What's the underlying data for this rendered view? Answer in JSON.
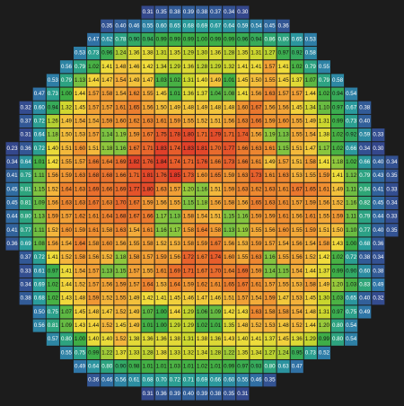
{
  "chart_data": {
    "type": "heatmap",
    "colorscale": [
      [
        0.3,
        "#34478c"
      ],
      [
        0.5,
        "#2f78a8"
      ],
      [
        0.68,
        "#2a9c9c"
      ],
      [
        0.88,
        "#2fa86c"
      ],
      [
        1.0,
        "#3fae45"
      ],
      [
        1.15,
        "#80c341"
      ],
      [
        1.3,
        "#c9d62e"
      ],
      [
        1.42,
        "#f1dc3c"
      ],
      [
        1.52,
        "#f4b53c"
      ],
      [
        1.62,
        "#ee8a30"
      ],
      [
        1.72,
        "#e8632c"
      ],
      [
        1.85,
        "#df3a28"
      ]
    ],
    "values": [
      [
        null,
        null,
        null,
        null,
        null,
        null,
        null,
        null,
        null,
        null,
        0.31,
        0.35,
        0.38,
        0.39,
        0.38,
        0.37,
        0.34,
        {
          "value": 0.3,
          "label": "0.30"
        },
        null,
        null,
        null,
        null,
        null,
        null,
        null,
        null,
        null,
        null,
        null
      ],
      [
        null,
        null,
        null,
        null,
        null,
        null,
        null,
        0.35,
        {
          "value": 0.4,
          "label": "0.40"
        },
        0.46,
        0.55,
        {
          "value": 0.6,
          "label": "0.60"
        },
        0.65,
        0.68,
        0.69,
        0.67,
        0.64,
        0.59,
        0.54,
        0.45,
        0.36,
        null,
        null,
        null,
        null,
        null,
        null,
        null,
        null
      ],
      [
        null,
        null,
        null,
        null,
        null,
        null,
        0.47,
        0.62,
        0.78,
        {
          "value": 0.9,
          "label": "0.90"
        },
        0.94,
        0.99,
        0.99,
        0.99,
        {
          "value": 1,
          "label": "1.00"
        },
        0.99,
        0.99,
        0.96,
        0.94,
        0.86,
        {
          "value": 0.8,
          "label": "0.80"
        },
        0.65,
        0.53,
        null,
        null,
        null,
        null,
        null,
        null
      ],
      [
        null,
        null,
        null,
        null,
        null,
        0.53,
        0.73,
        0.96,
        1.24,
        1.36,
        1.38,
        1.31,
        1.35,
        1.29,
        {
          "value": 1.3,
          "label": "1.30"
        },
        1.36,
        1.28,
        1.35,
        1.31,
        1.27,
        0.97,
        0.92,
        0.58,
        null,
        null,
        null,
        null,
        null,
        null
      ],
      [
        null,
        null,
        null,
        null,
        0.56,
        0.79,
        1.02,
        1.41,
        1.48,
        1.46,
        1.42,
        1.34,
        1.29,
        1.36,
        1.28,
        1.29,
        1.32,
        1.41,
        1.41,
        1.57,
        1.41,
        1.02,
        0.79,
        0.55,
        null,
        null,
        null,
        null,
        null
      ],
      [
        null,
        null,
        null,
        0.53,
        0.79,
        1.13,
        1.44,
        1.47,
        1.54,
        1.49,
        1.47,
        1.03,
        1.02,
        1.31,
        {
          "value": 1.4,
          "label": "1.40"
        },
        1.49,
        1.01,
        1.45,
        {
          "value": 1.5,
          "label": "1.50"
        },
        1.55,
        1.45,
        1.37,
        1.07,
        0.79,
        0.58,
        null,
        null,
        null,
        null
      ],
      [
        null,
        null,
        0.47,
        0.73,
        {
          "value": 1,
          "label": "1.00"
        },
        1.44,
        1.57,
        1.58,
        1.54,
        1.62,
        1.55,
        1.45,
        1.01,
        1.36,
        1.37,
        1.04,
        1.08,
        1.41,
        1.56,
        1.63,
        1.57,
        1.57,
        1.44,
        1.02,
        0.94,
        0.54,
        null,
        null,
        null
      ],
      [
        null,
        0.32,
        {
          "value": 0.6,
          "label": "0.60"
        },
        0.94,
        1.32,
        1.45,
        1.57,
        1.57,
        1.61,
        1.65,
        1.56,
        {
          "value": 1.5,
          "label": "1.50"
        },
        1.49,
        1.48,
        1.49,
        1.48,
        1.48,
        {
          "value": 1.6,
          "label": "1.60"
        },
        1.67,
        1.56,
        1.56,
        1.45,
        1.34,
        {
          "value": 1.1,
          "label": "1.10"
        },
        0.97,
        0.67,
        0.38,
        null,
        null
      ],
      [
        null,
        0.37,
        0.72,
        1.26,
        1.49,
        1.54,
        1.54,
        1.59,
        {
          "value": 1.6,
          "label": "1.60"
        },
        1.62,
        1.63,
        1.61,
        1.59,
        1.55,
        1.52,
        1.51,
        1.56,
        1.63,
        1.66,
        1.59,
        {
          "value": 1.6,
          "label": "1.60"
        },
        1.55,
        1.49,
        1.31,
        0.99,
        0.73,
        {
          "value": 0.4,
          "label": "0.40"
        },
        null,
        null
      ],
      [
        null,
        0.31,
        0.64,
        1.18,
        {
          "value": 1.5,
          "label": "1.50"
        },
        1.53,
        1.57,
        1.14,
        1.19,
        1.59,
        1.67,
        1.75,
        1.78,
        {
          "value": 1.8,
          "label": "1.80"
        },
        1.71,
        1.79,
        1.71,
        1.74,
        1.56,
        1.19,
        1.13,
        1.55,
        1.54,
        1.38,
        1.02,
        0.92,
        0.59,
        0.33,
        null
      ],
      [
        0.23,
        0.36,
        0.72,
        {
          "value": 1.4,
          "label": "1.40"
        },
        1.51,
        {
          "value": 1.6,
          "label": "1.60"
        },
        1.51,
        1.18,
        1.16,
        1.67,
        1.71,
        1.83,
        1.74,
        1.83,
        1.81,
        {
          "value": 1.7,
          "label": "1.70"
        },
        1.77,
        1.66,
        1.63,
        1.61,
        1.15,
        1.51,
        1.47,
        1.17,
        1.02,
        0.66,
        0.34,
        {
          "value": 0.3,
          "label": "0.30"
        },
        null
      ],
      [
        0.34,
        0.64,
        1.01,
        1.42,
        1.55,
        1.57,
        1.66,
        1.64,
        1.69,
        1.82,
        1.76,
        1.84,
        1.74,
        1.71,
        1.76,
        1.66,
        1.73,
        1.66,
        1.61,
        1.49,
        1.57,
        1.51,
        1.58,
        1.41,
        1.18,
        1.02,
        0.66,
        {
          "value": 0.4,
          "label": "0.40"
        },
        0.34
      ],
      [
        0.41,
        0.75,
        1.11,
        1.56,
        1.59,
        1.63,
        1.68,
        1.68,
        1.66,
        1.71,
        1.81,
        1.76,
        1.85,
        1.73,
        {
          "value": 1.6,
          "label": "1.60"
        },
        1.65,
        1.59,
        1.63,
        1.73,
        1.61,
        1.63,
        1.53,
        1.55,
        1.59,
        1.41,
        1.12,
        0.79,
        0.43,
        0.35
      ],
      [
        0.45,
        0.81,
        1.15,
        1.52,
        1.64,
        1.63,
        1.69,
        1.66,
        1.69,
        1.77,
        {
          "value": 1.8,
          "label": "1.80"
        },
        1.63,
        1.57,
        {
          "value": 1.2,
          "label": "1.20"
        },
        1.16,
        1.51,
        1.59,
        1.63,
        1.62,
        1.63,
        1.61,
        1.67,
        1.65,
        1.61,
        1.49,
        1.11,
        0.84,
        0.41,
        0.33
      ],
      [
        0.45,
        0.81,
        1.09,
        1.56,
        1.63,
        1.63,
        1.67,
        1.63,
        {
          "value": 1.7,
          "label": "1.70"
        },
        1.67,
        1.59,
        1.56,
        1.55,
        1.15,
        1.18,
        1.56,
        1.58,
        1.56,
        1.65,
        1.63,
        1.61,
        1.57,
        1.59,
        1.56,
        1.52,
        1.16,
        0.82,
        0.45,
        0.34
      ],
      [
        0.44,
        {
          "value": 0.8,
          "label": "0.80"
        },
        1.13,
        1.59,
        1.57,
        1.62,
        1.61,
        1.64,
        1.68,
        1.67,
        1.66,
        1.17,
        1.13,
        1.58,
        1.54,
        1.51,
        1.15,
        1.16,
        1.59,
        1.59,
        1.61,
        1.56,
        1.61,
        1.55,
        1.59,
        1.11,
        0.79,
        0.44,
        0.33
      ],
      [
        0.41,
        0.77,
        1.11,
        1.52,
        {
          "value": 1.6,
          "label": "1.60"
        },
        1.59,
        1.61,
        1.58,
        1.63,
        1.54,
        1.61,
        1.16,
        1.17,
        1.58,
        1.64,
        1.58,
        1.13,
        1.19,
        1.55,
        1.56,
        {
          "value": 1.6,
          "label": "1.60"
        },
        1.55,
        1.59,
        1.51,
        {
          "value": 1.5,
          "label": "1.50"
        },
        {
          "value": 1.1,
          "label": "1.10"
        },
        0.77,
        {
          "value": 0.4,
          "label": "0.40"
        },
        0.35
      ],
      [
        0.36,
        0.69,
        1.08,
        1.56,
        1.54,
        1.64,
        1.58,
        {
          "value": 1.6,
          "label": "1.60"
        },
        1.56,
        1.55,
        1.58,
        1.52,
        1.53,
        1.58,
        1.59,
        1.67,
        1.56,
        1.53,
        1.59,
        1.57,
        1.54,
        1.56,
        1.54,
        1.58,
        1.43,
        {
          "value": 1,
          "label": "1.00"
        },
        0.68,
        0.36,
        null
      ],
      [
        null,
        0.37,
        0.72,
        1.41,
        1.52,
        1.58,
        1.56,
        1.52,
        1.18,
        1.58,
        1.57,
        1.59,
        1.56,
        1.72,
        1.67,
        1.74,
        {
          "value": 1.6,
          "label": "1.60"
        },
        1.55,
        1.63,
        1.16,
        1.55,
        1.56,
        1.52,
        1.42,
        1.02,
        0.72,
        0.38,
        0.34,
        null
      ],
      [
        null,
        0.33,
        0.61,
        0.97,
        1.41,
        1.54,
        1.57,
        1.13,
        1.15,
        1.57,
        1.55,
        1.61,
        1.69,
        1.71,
        1.67,
        {
          "value": 1.7,
          "label": "1.70"
        },
        1.64,
        1.69,
        1.59,
        1.14,
        1.15,
        1.54,
        1.44,
        1.37,
        0.99,
        {
          "value": 0.9,
          "label": "0.90"
        },
        {
          "value": 0.6,
          "label": "0.60"
        },
        0.38,
        null
      ],
      [
        null,
        0.34,
        0.69,
        1.02,
        1.44,
        1.52,
        1.57,
        1.56,
        1.59,
        1.57,
        1.64,
        1.53,
        1.64,
        1.59,
        1.62,
        1.61,
        1.65,
        1.67,
        1.61,
        1.57,
        1.55,
        1.53,
        1.58,
        1.49,
        {
          "value": 1.2,
          "label": "1.20"
        },
        1.03,
        0.83,
        0.49,
        null
      ],
      [
        null,
        0.38,
        0.68,
        1.02,
        1.43,
        1.48,
        1.59,
        1.52,
        1.55,
        1.49,
        1.42,
        1.41,
        1.45,
        1.46,
        1.47,
        1.46,
        1.51,
        1.57,
        1.54,
        1.59,
        1.47,
        1.53,
        1.45,
        {
          "value": 1.3,
          "label": "1.30"
        },
        1.03,
        0.65,
        {
          "value": 0.4,
          "label": "0.40"
        },
        0.32,
        null
      ],
      [
        null,
        null,
        {
          "value": 0.5,
          "label": "0.50"
        },
        0.75,
        1.07,
        1.45,
        1.48,
        1.47,
        1.52,
        1.49,
        1.07,
        {
          "value": 1,
          "label": "1.00"
        },
        1.44,
        1.29,
        1.06,
        1.09,
        1.42,
        1.43,
        1.63,
        1.58,
        1.58,
        1.54,
        1.48,
        1.31,
        0.97,
        0.75,
        0.49,
        null,
        null
      ],
      [
        null,
        null,
        0.56,
        0.81,
        1.09,
        1.43,
        1.44,
        1.52,
        1.45,
        1.49,
        1.01,
        {
          "value": 1,
          "label": "1.00"
        },
        1.29,
        1.29,
        1.02,
        1.01,
        1.35,
        1.48,
        1.52,
        1.53,
        1.48,
        1.52,
        1.44,
        {
          "value": 1.2,
          "label": "1.20"
        },
        {
          "value": 0.8,
          "label": "0.80"
        },
        0.54,
        null,
        null,
        null
      ],
      [
        null,
        null,
        null,
        0.57,
        {
          "value": 0.8,
          "label": "0.80"
        },
        {
          "value": 1,
          "label": "1.00"
        },
        {
          "value": 1.4,
          "label": "1.40"
        },
        {
          "value": 1.4,
          "label": "1.40"
        },
        1.52,
        1.38,
        1.36,
        1.36,
        1.38,
        1.31,
        1.38,
        1.36,
        1.43,
        {
          "value": 1.4,
          "label": "1.40"
        },
        1.41,
        1.37,
        1.45,
        1.36,
        1.29,
        0.99,
        {
          "value": 0.8,
          "label": "0.80"
        },
        0.54,
        null,
        null,
        null
      ],
      [
        null,
        null,
        null,
        null,
        0.55,
        0.75,
        0.99,
        1.22,
        1.37,
        1.33,
        1.28,
        1.38,
        1.33,
        1.32,
        1.34,
        1.28,
        1.22,
        1.35,
        1.34,
        1.27,
        1.24,
        0.95,
        0.73,
        0.52,
        null,
        null,
        null,
        null,
        null
      ],
      [
        null,
        null,
        null,
        null,
        null,
        0.49,
        0.64,
        {
          "value": 0.8,
          "label": "0.80"
        },
        {
          "value": 0.9,
          "label": "0.90"
        },
        0.98,
        1.01,
        1.01,
        1.03,
        1.01,
        1.02,
        1.01,
        0.99,
        0.97,
        0.93,
        {
          "value": 0.8,
          "label": "0.80"
        },
        0.63,
        0.47,
        null,
        null,
        null,
        null,
        null,
        null,
        null
      ],
      [
        null,
        null,
        null,
        null,
        null,
        null,
        0.36,
        0.46,
        0.56,
        0.61,
        0.68,
        {
          "value": 0.7,
          "label": "0.70"
        },
        0.72,
        0.71,
        0.69,
        0.66,
        {
          "value": 0.6,
          "label": "0.60"
        },
        0.55,
        0.46,
        0.35,
        null,
        null,
        null,
        null,
        null,
        null,
        null,
        null,
        null
      ],
      [
        null,
        null,
        null,
        null,
        null,
        null,
        null,
        null,
        null,
        null,
        0.31,
        0.36,
        0.39,
        {
          "value": 0.4,
          "label": "0.40"
        },
        0.39,
        0.38,
        0.35,
        0.31,
        null,
        null,
        null,
        null,
        null,
        null,
        null,
        null,
        null,
        null,
        null
      ]
    ]
  }
}
